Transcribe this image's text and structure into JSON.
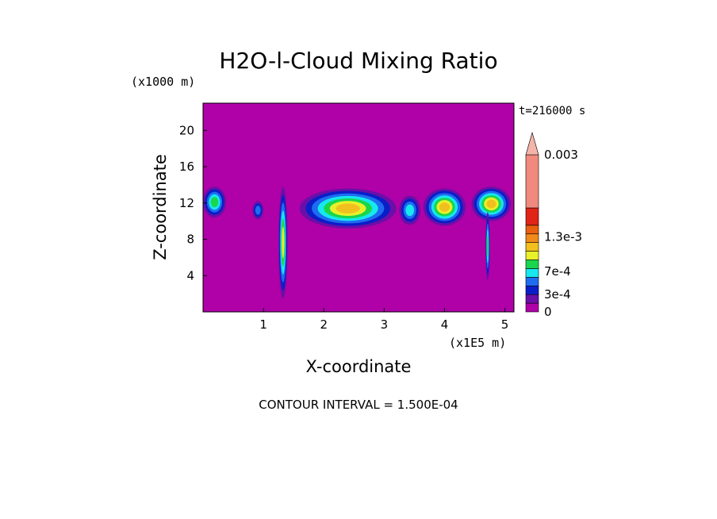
{
  "chart_data": {
    "type": "heatmap",
    "title": "H2O-l-Cloud Mixing Ratio",
    "xlabel": "X-coordinate",
    "ylabel": "Z-coordinate",
    "x_unit": "(x1E5 m)",
    "y_unit": "(x1000 m)",
    "xlim": [
      0,
      5.15
    ],
    "ylim": [
      0,
      23
    ],
    "x_ticks": [
      "1",
      "2",
      "3",
      "4",
      "5"
    ],
    "y_ticks": [
      "4",
      "8",
      "12",
      "16",
      "20"
    ],
    "time_label": "t=216000 s",
    "footer": "CONTOUR INTERVAL = 1.500E-04",
    "colorbar": {
      "labels": [
        "0.003",
        "1.3e-3",
        "7e-4",
        "3e-4",
        "0"
      ],
      "label_values": [
        0.003,
        0.0013,
        0.0007,
        0.0003,
        0
      ],
      "bands": [
        {
          "min": 0,
          "max": 0.00015,
          "color": "#b000a8"
        },
        {
          "min": 0.00015,
          "max": 0.0003,
          "color": "#6a0fa8"
        },
        {
          "min": 0.0003,
          "max": 0.00045,
          "color": "#0a1ec8"
        },
        {
          "min": 0.00045,
          "max": 0.0006,
          "color": "#1e6cf0"
        },
        {
          "min": 0.0006,
          "max": 0.00075,
          "color": "#16e8ee"
        },
        {
          "min": 0.00075,
          "max": 0.0009,
          "color": "#19d64d"
        },
        {
          "min": 0.0009,
          "max": 0.00105,
          "color": "#e8f02a"
        },
        {
          "min": 0.00105,
          "max": 0.0012,
          "color": "#f2c01e"
        },
        {
          "min": 0.0012,
          "max": 0.00135,
          "color": "#f08a1a"
        },
        {
          "min": 0.00135,
          "max": 0.0015,
          "color": "#e86010"
        },
        {
          "min": 0.0015,
          "max": 0.0018,
          "color": "#e02418"
        },
        {
          "min": 0.0018,
          "max": 0.003,
          "color": "#f08a7e"
        }
      ],
      "overflow_color": "#f4b4a8"
    },
    "regions": [
      {
        "x": [
          0.0,
          0.38
        ],
        "z": [
          10.4,
          13.8
        ],
        "level": 5
      },
      {
        "x": [
          0.82,
          1.0
        ],
        "z": [
          10.2,
          12.2
        ],
        "level": 3
      },
      {
        "x": [
          1.25,
          1.4
        ],
        "z": [
          1.5,
          13.8
        ],
        "level": 6
      },
      {
        "x": [
          1.6,
          3.2
        ],
        "z": [
          9.2,
          13.6
        ],
        "level": 7
      },
      {
        "x": [
          3.25,
          3.6
        ],
        "z": [
          9.6,
          12.8
        ],
        "level": 4
      },
      {
        "x": [
          3.65,
          4.35
        ],
        "z": [
          9.5,
          13.6
        ],
        "level": 7
      },
      {
        "x": [
          4.45,
          5.1
        ],
        "z": [
          10.0,
          13.8
        ],
        "level": 7
      },
      {
        "x": [
          4.68,
          4.75
        ],
        "z": [
          3.5,
          11.0
        ],
        "level": 5
      }
    ]
  }
}
